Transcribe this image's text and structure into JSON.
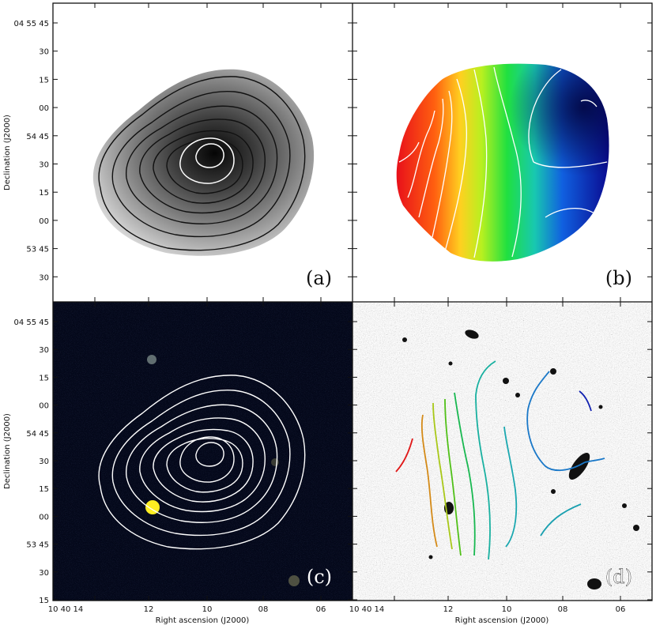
{
  "figure": {
    "panels": [
      {
        "id": "a",
        "label": "(a)",
        "description_key": "grayscale-moment0-map"
      },
      {
        "id": "b",
        "label": "(b)",
        "description_key": "velocity-field-map"
      },
      {
        "id": "c",
        "label": "(c)",
        "description_key": "color-optical-overlay"
      },
      {
        "id": "d",
        "label": "(d)",
        "description_key": "optical-grayscale-overlay"
      }
    ],
    "ylabel": "Declination (J2000)",
    "xlabel": "Right ascension (J2000)",
    "yticks_top": [
      "04 55 45",
      "30",
      "15",
      "00",
      "54 45",
      "30",
      "15",
      "00",
      "53 45",
      "30"
    ],
    "yticks_bottom": [
      "04 55 45",
      "30",
      "15",
      "00",
      "54 45",
      "30",
      "15",
      "00",
      "53 45",
      "30",
      "15"
    ],
    "xticks": [
      "10 40 14",
      "12",
      "10",
      "08",
      "06"
    ],
    "colors": {
      "black_contour": "#111111",
      "white_contour": "#ffffff",
      "red": "#e8201a",
      "blue": "#0a12a8",
      "green": "#18e040",
      "yellow_source": "#ffee22"
    }
  }
}
